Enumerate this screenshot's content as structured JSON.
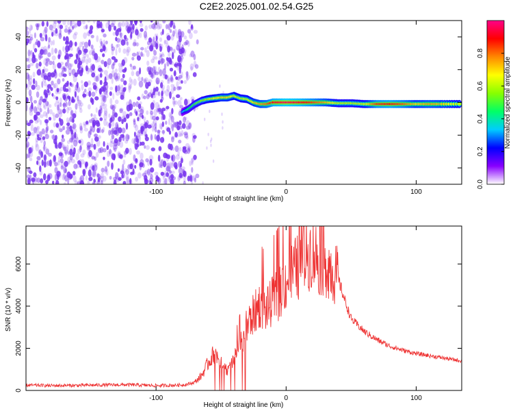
{
  "figure": {
    "title": "C2E2.2025.001.02.54.G25"
  },
  "colors": {
    "snr_line": "#ee3333",
    "noise_dots": "#7733ee",
    "colorbar_stops": [
      "#ffffff",
      "#8800ff",
      "#0000ff",
      "#00ccff",
      "#00ff66",
      "#88ff00",
      "#ffff00",
      "#ff8800",
      "#ff0000",
      "#ff0088"
    ]
  },
  "chart_data": [
    {
      "type": "heatmap",
      "xlabel": "Height of straight line (km)",
      "ylabel": "Frequency (Hz)",
      "xlim": [
        -200,
        135
      ],
      "ylim": [
        -50,
        50
      ],
      "x_ticks": [
        -100,
        0,
        100
      ],
      "y_ticks": [
        -40,
        -20,
        0,
        20,
        40
      ],
      "colorbar": {
        "label": "Normalized spectral amplitude",
        "range": [
          0,
          1
        ],
        "ticks": [
          0.0,
          0.2,
          0.4,
          0.6,
          0.8
        ]
      },
      "noise_region_x": [
        -200,
        -68
      ],
      "ridge": {
        "x": [
          -80,
          -75,
          -70,
          -65,
          -60,
          -55,
          -50,
          -45,
          -40,
          -35,
          -30,
          -25,
          -20,
          -15,
          -10,
          0,
          10,
          20,
          30,
          40,
          50,
          60,
          70,
          80,
          90,
          100,
          110,
          120,
          135
        ],
        "y": [
          -6,
          -4,
          -1,
          1,
          2,
          2.5,
          3,
          3,
          4,
          2.5,
          2,
          0,
          -1,
          -1,
          0,
          0,
          0,
          0,
          0,
          -0.5,
          -0.5,
          -1,
          -1,
          -1,
          -1,
          -1,
          -1,
          -1,
          -1
        ],
        "amplitude": [
          0.3,
          0.45,
          0.5,
          0.55,
          0.6,
          0.65,
          0.7,
          0.7,
          0.65,
          0.6,
          0.62,
          0.7,
          0.75,
          0.8,
          0.9,
          0.95,
          0.92,
          0.85,
          0.75,
          0.6,
          0.6,
          0.62,
          0.85,
          0.88,
          0.82,
          0.7,
          0.75,
          0.72,
          0.6
        ]
      }
    },
    {
      "type": "line",
      "xlabel": "Height of straight line (km)",
      "ylabel": "SNR (10 * v/v)",
      "xlim": [
        -200,
        135
      ],
      "ylim": [
        0,
        7800
      ],
      "x_ticks": [
        -100,
        0,
        100
      ],
      "y_ticks": [
        0,
        2000,
        4000,
        6000
      ],
      "series": [
        {
          "x": [
            -200,
            -180,
            -160,
            -140,
            -120,
            -100,
            -90,
            -80,
            -75,
            -70,
            -65,
            -60,
            -55,
            -50,
            -45,
            -40,
            -35,
            -30,
            -25,
            -20,
            -15,
            -10,
            -5,
            0,
            5,
            10,
            15,
            20,
            25,
            30,
            35,
            40,
            45,
            50,
            60,
            70,
            80,
            90,
            100,
            110,
            120,
            135
          ],
          "y": [
            250,
            230,
            240,
            260,
            270,
            230,
            240,
            260,
            300,
            400,
            700,
            1300,
            1800,
            1400,
            900,
            1500,
            2200,
            3100,
            3600,
            4100,
            3800,
            4300,
            4600,
            5200,
            5600,
            5900,
            6400,
            6600,
            6200,
            6100,
            5800,
            5300,
            4300,
            3400,
            2800,
            2400,
            2100,
            1900,
            1750,
            1650,
            1550,
            1400
          ]
        }
      ]
    }
  ]
}
